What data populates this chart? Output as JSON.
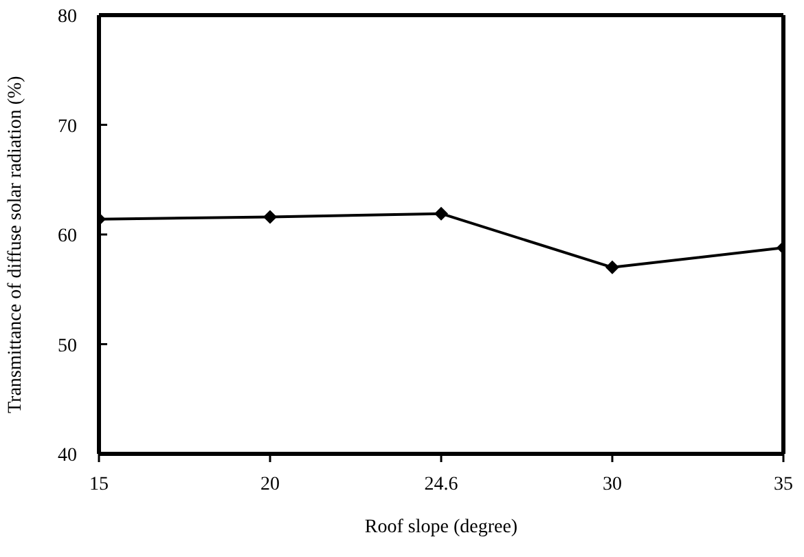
{
  "chart_data": {
    "type": "line",
    "xlabel": "Roof slope (degree)",
    "ylabel": "Transmittance   of diffuse solar radiation (%)",
    "categories": [
      "15",
      "20",
      "24.6",
      "30",
      "35"
    ],
    "series": [
      {
        "color": "#000000",
        "values": [
          61.4,
          61.6,
          61.9,
          57.0,
          58.8
        ]
      }
    ],
    "ylim": [
      40,
      80
    ],
    "yticks": [
      40,
      50,
      60,
      70,
      80
    ],
    "grid": false,
    "legend": false,
    "marker": "diamond",
    "line_style": "solid"
  }
}
